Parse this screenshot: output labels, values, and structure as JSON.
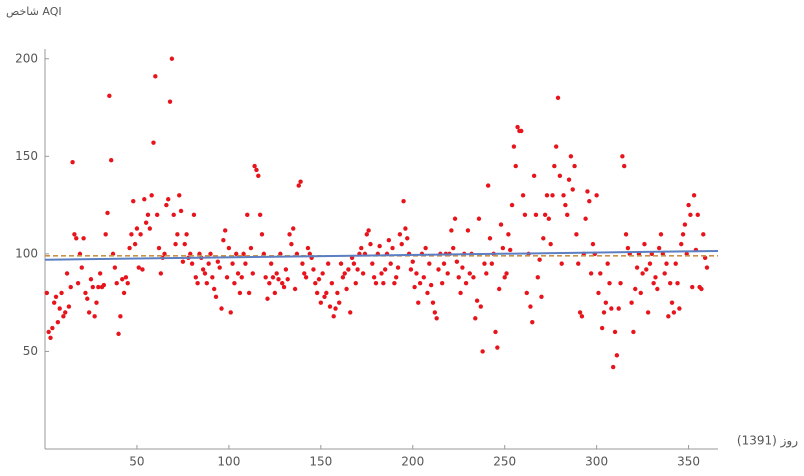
{
  "chart_data": {
    "type": "scatter",
    "y_label": "شاخص AQI",
    "x_label": "روز (1391)",
    "xlim": [
      0,
      366
    ],
    "ylim": [
      0,
      205
    ],
    "xticks": [
      50,
      100,
      150,
      200,
      250,
      300,
      350
    ],
    "yticks": [
      50,
      100,
      150,
      200
    ],
    "color": "#e8141c",
    "x": [
      1,
      2,
      3,
      4,
      5,
      6,
      7,
      8,
      9,
      10,
      11,
      12,
      13,
      14,
      15,
      16,
      17,
      18,
      19,
      20,
      21,
      22,
      23,
      24,
      25,
      26,
      27,
      28,
      29,
      30,
      31,
      32,
      33,
      34,
      35,
      36,
      37,
      38,
      39,
      40,
      41,
      42,
      43,
      44,
      45,
      46,
      47,
      48,
      49,
      50,
      51,
      52,
      53,
      54,
      55,
      56,
      57,
      58,
      59,
      60,
      61,
      62,
      63,
      64,
      65,
      66,
      67,
      68,
      69,
      70,
      71,
      72,
      73,
      74,
      75,
      76,
      77,
      78,
      79,
      80,
      81,
      82,
      83,
      84,
      85,
      86,
      87,
      88,
      89,
      90,
      91,
      92,
      93,
      94,
      95,
      96,
      97,
      98,
      99,
      100,
      101,
      102,
      103,
      104,
      105,
      106,
      107,
      108,
      109,
      110,
      111,
      112,
      113,
      114,
      115,
      116,
      117,
      118,
      119,
      120,
      121,
      122,
      123,
      124,
      125,
      126,
      127,
      128,
      129,
      130,
      131,
      132,
      133,
      134,
      135,
      136,
      137,
      138,
      139,
      140,
      141,
      142,
      143,
      144,
      145,
      146,
      147,
      148,
      149,
      150,
      151,
      152,
      153,
      154,
      155,
      156,
      157,
      158,
      159,
      160,
      161,
      162,
      163,
      164,
      165,
      166,
      167,
      168,
      169,
      170,
      171,
      172,
      173,
      174,
      175,
      176,
      177,
      178,
      179,
      180,
      181,
      182,
      183,
      184,
      185,
      186,
      187,
      188,
      189,
      190,
      191,
      192,
      193,
      194,
      195,
      196,
      197,
      198,
      199,
      200,
      201,
      202,
      203,
      204,
      205,
      206,
      207,
      208,
      209,
      210,
      211,
      212,
      213,
      214,
      215,
      216,
      217,
      218,
      219,
      220,
      221,
      222,
      223,
      224,
      225,
      226,
      227,
      228,
      229,
      230,
      231,
      232,
      233,
      234,
      235,
      236,
      237,
      238,
      239,
      240,
      241,
      242,
      243,
      244,
      245,
      246,
      247,
      248,
      249,
      250,
      251,
      252,
      253,
      254,
      255,
      256,
      257,
      258,
      259,
      260,
      261,
      262,
      263,
      264,
      265,
      266,
      267,
      268,
      269,
      270,
      271,
      272,
      273,
      274,
      275,
      276,
      277,
      278,
      279,
      280,
      281,
      282,
      283,
      284,
      285,
      286,
      287,
      288,
      289,
      290,
      291,
      292,
      293,
      294,
      295,
      296,
      297,
      298,
      299,
      300,
      301,
      302,
      303,
      304,
      305,
      306,
      307,
      308,
      309,
      310,
      311,
      312,
      313,
      314,
      315,
      316,
      317,
      318,
      319,
      320,
      321,
      322,
      323,
      324,
      325,
      326,
      327,
      328,
      329,
      330,
      331,
      332,
      333,
      334,
      335,
      336,
      337,
      338,
      339,
      340,
      341,
      342,
      343,
      344,
      345,
      346,
      347,
      348,
      349,
      350,
      351,
      352,
      353,
      354,
      355,
      356,
      357,
      358,
      359,
      360
    ],
    "values": [
      80,
      60,
      57,
      62,
      75,
      78,
      65,
      72,
      80,
      68,
      70,
      90,
      73,
      83,
      147,
      110,
      108,
      85,
      100,
      93,
      108,
      80,
      77,
      70,
      87,
      83,
      68,
      75,
      83,
      90,
      83,
      84,
      110,
      121,
      181,
      148,
      100,
      93,
      85,
      59,
      68,
      87,
      80,
      88,
      85,
      103,
      110,
      127,
      105,
      113,
      93,
      110,
      92,
      128,
      116,
      120,
      113,
      130,
      157,
      191,
      120,
      103,
      90,
      98,
      100,
      125,
      128,
      178,
      200,
      120,
      105,
      110,
      130,
      122,
      96,
      105,
      110,
      98,
      100,
      95,
      120,
      88,
      85,
      100,
      98,
      92,
      90,
      85,
      95,
      100,
      88,
      82,
      78,
      96,
      93,
      72,
      107,
      112,
      88,
      103,
      70,
      95,
      85,
      100,
      90,
      80,
      88,
      100,
      95,
      120,
      80,
      103,
      90,
      145,
      143,
      140,
      120,
      110,
      100,
      88,
      77,
      85,
      95,
      88,
      80,
      90,
      87,
      100,
      85,
      83,
      92,
      87,
      110,
      105,
      113,
      82,
      100,
      135,
      137,
      95,
      90,
      88,
      103,
      100,
      98,
      92,
      85,
      80,
      87,
      75,
      90,
      78,
      80,
      95,
      73,
      85,
      68,
      72,
      80,
      75,
      95,
      88,
      90,
      82,
      92,
      70,
      98,
      95,
      85,
      92,
      100,
      103,
      90,
      100,
      110,
      112,
      105,
      95,
      88,
      85,
      100,
      104,
      90,
      85,
      92,
      100,
      107,
      95,
      103,
      85,
      88,
      93,
      110,
      105,
      127,
      113,
      108,
      100,
      92,
      96,
      83,
      90,
      75,
      85,
      100,
      88,
      103,
      80,
      95,
      84,
      75,
      70,
      67,
      92,
      100,
      85,
      95,
      100,
      90,
      100,
      112,
      103,
      118,
      96,
      88,
      80,
      93,
      100,
      85,
      112,
      90,
      100,
      88,
      67,
      76,
      118,
      73,
      50,
      95,
      90,
      135,
      108,
      95,
      100,
      60,
      52,
      82,
      115,
      103,
      88,
      90,
      110,
      102,
      125,
      155,
      145,
      165,
      163,
      163,
      130,
      120,
      80,
      100,
      73,
      65,
      140,
      120,
      88,
      97,
      78,
      108,
      120,
      130,
      118,
      105,
      130,
      145,
      155,
      180,
      140,
      95,
      130,
      125,
      120,
      138,
      150,
      133,
      145,
      110,
      95,
      70,
      68,
      100,
      118,
      132,
      127,
      90,
      105,
      100,
      130,
      80,
      90,
      62,
      70,
      75,
      95,
      85,
      72,
      42,
      60,
      48,
      72,
      85,
      150,
      145,
      110,
      103,
      100,
      75,
      60,
      82,
      93,
      100,
      80,
      90,
      105,
      92,
      70,
      95,
      100,
      85,
      88,
      82,
      103,
      110,
      100,
      90,
      95,
      68,
      85,
      75,
      70,
      95,
      85,
      72,
      105,
      110,
      115,
      100,
      125,
      120,
      83,
      130,
      102,
      120,
      83,
      82,
      110,
      98,
      93
    ],
    "trend": {
      "x": [
        0,
        366
      ],
      "values": [
        97,
        101.5
      ],
      "color": "#5b7fc2"
    },
    "mean": {
      "value": 99,
      "color": "#c8924a"
    }
  }
}
